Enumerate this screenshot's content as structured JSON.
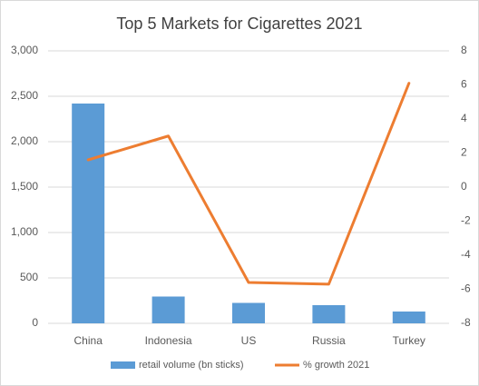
{
  "chart_data": {
    "type": "bar",
    "title": "Top 5 Markets for Cigarettes 2021",
    "categories": [
      "China",
      "Indonesia",
      "US",
      "Russia",
      "Turkey"
    ],
    "series": [
      {
        "name": "retail volume (bn sticks)",
        "type": "bar",
        "color": "#5b9bd5",
        "values": [
          2420,
          295,
          225,
          200,
          130
        ]
      },
      {
        "name": "% growth 2021",
        "type": "line",
        "axis": "y2",
        "color": "#ed7d31",
        "values": [
          1.6,
          3.0,
          -5.6,
          -5.7,
          6.1
        ]
      }
    ],
    "ylim": [
      0,
      3000
    ],
    "yticks": [
      0,
      500,
      {
        "value": 1000,
        "label": "1,000"
      },
      {
        "value": 1500,
        "label": "1,500"
      },
      {
        "value": 2000,
        "label": "2,000"
      },
      {
        "value": 2500,
        "label": "2,500"
      },
      {
        "value": 3000,
        "label": "3,000"
      }
    ],
    "y2lim": [
      -8,
      8
    ],
    "y2ticks": [
      -8,
      -6,
      -4,
      -2,
      0,
      2,
      4,
      6,
      8
    ],
    "grid": true,
    "legend": "bottom"
  }
}
